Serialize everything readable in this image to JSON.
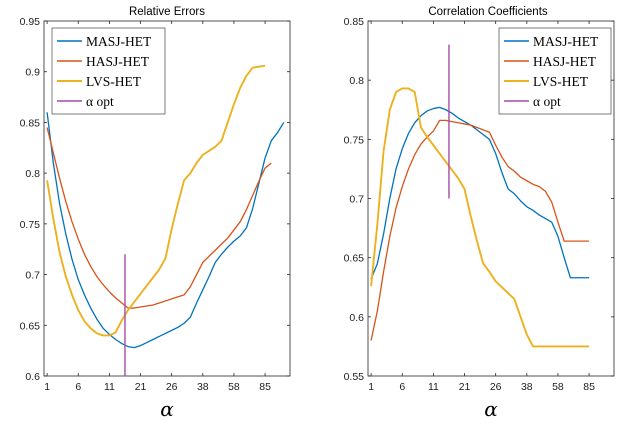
{
  "chart_data": [
    {
      "type": "line",
      "title": "Relative Errors",
      "xlabel": "α",
      "ylabel": "",
      "x_ticks": [
        "1",
        "6",
        "11",
        "21",
        "26",
        "38",
        "58",
        "85"
      ],
      "x_tick_values": [
        1,
        6,
        11,
        16,
        21,
        26,
        31,
        36
      ],
      "x_tick_labels": [
        "1",
        "6",
        "11",
        "21",
        "26",
        "38",
        "58",
        "85"
      ],
      "xlim": [
        0.5,
        40
      ],
      "ylim": [
        0.6,
        0.95
      ],
      "y_ticks": [
        0.6,
        0.65,
        0.7,
        0.75,
        0.8,
        0.85,
        0.9,
        0.95
      ],
      "y_tick_labels": [
        "0.6",
        "0.65",
        "0.7",
        "0.75",
        "0.8",
        "0.85",
        "0.9",
        "0.95"
      ],
      "legend_position": "top-left",
      "series": [
        {
          "name": "MASJ-HET",
          "color": "#0072BD",
          "x": [
            1,
            2,
            3,
            4,
            5,
            6,
            7,
            8,
            9,
            10,
            11,
            12,
            13,
            14,
            15,
            16,
            17,
            18,
            19,
            20,
            21,
            22,
            23,
            24,
            25,
            26,
            27,
            28,
            29,
            30,
            31,
            32,
            33,
            34,
            35,
            36,
            37,
            38,
            39
          ],
          "y": [
            0.86,
            0.81,
            0.77,
            0.74,
            0.715,
            0.695,
            0.68,
            0.667,
            0.656,
            0.647,
            0.641,
            0.636,
            0.632,
            0.629,
            0.628,
            0.63,
            0.633,
            0.636,
            0.639,
            0.642,
            0.645,
            0.648,
            0.652,
            0.658,
            0.672,
            0.685,
            0.698,
            0.712,
            0.72,
            0.727,
            0.733,
            0.738,
            0.746,
            0.765,
            0.79,
            0.815,
            0.832,
            0.84,
            0.85
          ]
        },
        {
          "name": "HASJ-HET",
          "color": "#D95319",
          "x": [
            1,
            2,
            3,
            4,
            5,
            6,
            7,
            8,
            9,
            10,
            11,
            12,
            13,
            14,
            15,
            16,
            17,
            18,
            19,
            20,
            21,
            22,
            23,
            24,
            25,
            26,
            27,
            28,
            29,
            30,
            31,
            32,
            33,
            34,
            35,
            36,
            37
          ],
          "y": [
            0.845,
            0.82,
            0.795,
            0.772,
            0.752,
            0.735,
            0.72,
            0.708,
            0.698,
            0.69,
            0.683,
            0.677,
            0.672,
            0.667,
            0.667,
            0.668,
            0.669,
            0.67,
            0.672,
            0.674,
            0.676,
            0.678,
            0.68,
            0.688,
            0.7,
            0.712,
            0.718,
            0.724,
            0.73,
            0.736,
            0.744,
            0.752,
            0.764,
            0.778,
            0.792,
            0.805,
            0.81
          ]
        },
        {
          "name": "LVS-HET",
          "color": "#EDB120",
          "x": [
            1,
            2,
            3,
            4,
            5,
            6,
            7,
            8,
            9,
            10,
            11,
            12,
            13,
            14,
            15,
            16,
            17,
            18,
            19,
            20,
            21,
            22,
            23,
            24,
            25,
            26,
            27,
            28,
            29,
            30,
            31,
            32,
            33,
            34,
            35,
            36
          ],
          "y": [
            0.793,
            0.755,
            0.722,
            0.698,
            0.68,
            0.665,
            0.654,
            0.647,
            0.642,
            0.64,
            0.64,
            0.643,
            0.655,
            0.665,
            0.673,
            0.681,
            0.689,
            0.697,
            0.705,
            0.716,
            0.745,
            0.77,
            0.793,
            0.8,
            0.81,
            0.818,
            0.822,
            0.826,
            0.832,
            0.85,
            0.868,
            0.884,
            0.896,
            0.904,
            0.905,
            0.906
          ]
        }
      ],
      "alpha_opt": {
        "name": "α opt",
        "color": "#A64CA6",
        "x": 13.5,
        "y_range": [
          0.6,
          0.72
        ]
      }
    },
    {
      "type": "line",
      "title": "Correlation Coefficients",
      "xlabel": "α",
      "ylabel": "",
      "x_tick_values": [
        1,
        6,
        11,
        16,
        21,
        26,
        31,
        36
      ],
      "x_tick_labels": [
        "1",
        "6",
        "11",
        "21",
        "26",
        "38",
        "58",
        "85"
      ],
      "xlim": [
        0.5,
        40
      ],
      "ylim": [
        0.55,
        0.85
      ],
      "y_ticks": [
        0.55,
        0.6,
        0.65,
        0.7,
        0.75,
        0.8,
        0.85
      ],
      "y_tick_labels": [
        "0.55",
        "0.6",
        "0.65",
        "0.7",
        "0.75",
        "0.8",
        "0.85"
      ],
      "legend_position": "top-right",
      "series": [
        {
          "name": "MASJ-HET",
          "color": "#0072BD",
          "x": [
            1,
            2,
            3,
            4,
            5,
            6,
            7,
            8,
            9,
            10,
            11,
            12,
            13,
            14,
            15,
            16,
            17,
            18,
            19,
            20,
            21,
            22,
            23,
            24,
            25,
            26,
            27,
            28,
            29,
            30,
            31,
            32,
            33,
            34,
            35,
            36
          ],
          "y": [
            0.632,
            0.645,
            0.67,
            0.7,
            0.725,
            0.742,
            0.755,
            0.764,
            0.77,
            0.774,
            0.776,
            0.777,
            0.775,
            0.772,
            0.768,
            0.765,
            0.762,
            0.758,
            0.754,
            0.75,
            0.738,
            0.722,
            0.708,
            0.704,
            0.698,
            0.693,
            0.69,
            0.686,
            0.683,
            0.68,
            0.668,
            0.65,
            0.633,
            0.633,
            0.633,
            0.633
          ]
        },
        {
          "name": "HASJ-HET",
          "color": "#D95319",
          "x": [
            1,
            2,
            3,
            4,
            5,
            6,
            7,
            8,
            9,
            10,
            11,
            12,
            13,
            14,
            15,
            16,
            17,
            18,
            19,
            20,
            21,
            22,
            23,
            24,
            25,
            26,
            27,
            28,
            29,
            30,
            31,
            32,
            33,
            34,
            35,
            36
          ],
          "y": [
            0.58,
            0.605,
            0.638,
            0.668,
            0.692,
            0.71,
            0.725,
            0.737,
            0.746,
            0.752,
            0.757,
            0.766,
            0.766,
            0.765,
            0.764,
            0.763,
            0.762,
            0.76,
            0.758,
            0.756,
            0.745,
            0.735,
            0.727,
            0.723,
            0.718,
            0.715,
            0.712,
            0.71,
            0.706,
            0.697,
            0.68,
            0.664,
            0.664,
            0.664,
            0.664,
            0.664
          ]
        },
        {
          "name": "LVS-HET",
          "color": "#EDB120",
          "x": [
            1,
            2,
            3,
            4,
            5,
            6,
            7,
            8,
            9,
            10,
            11,
            12,
            13,
            14,
            15,
            16,
            17,
            18,
            19,
            20,
            21,
            22,
            23,
            24,
            25,
            26,
            27,
            28,
            29,
            30,
            31,
            32,
            33,
            34,
            35,
            36
          ],
          "y": [
            0.626,
            0.678,
            0.74,
            0.775,
            0.79,
            0.793,
            0.793,
            0.79,
            0.76,
            0.752,
            0.745,
            0.738,
            0.731,
            0.724,
            0.717,
            0.708,
            0.685,
            0.664,
            0.645,
            0.638,
            0.63,
            0.625,
            0.62,
            0.615,
            0.6,
            0.585,
            0.575,
            0.575,
            0.575,
            0.575,
            0.575,
            0.575,
            0.575,
            0.575,
            0.575,
            0.575
          ]
        }
      ],
      "alpha_opt": {
        "name": "α opt",
        "color": "#A64CA6",
        "x": 13.5,
        "y_range": [
          0.7,
          0.83
        ]
      }
    }
  ]
}
